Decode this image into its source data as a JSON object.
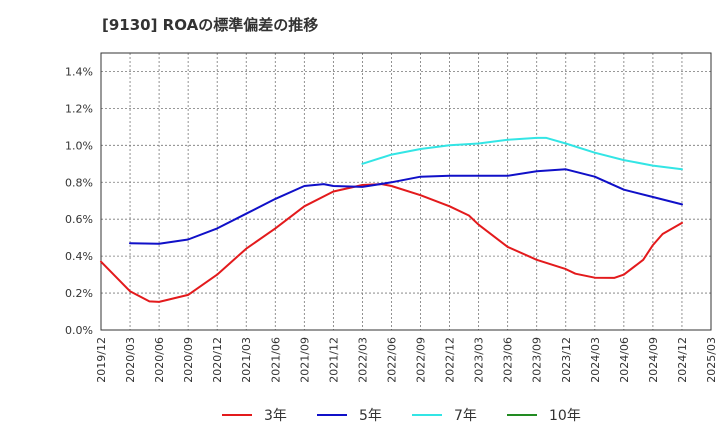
{
  "chart_data": {
    "type": "line",
    "title": "[9130]  ROAの標準偏差の推移",
    "xlabel": "",
    "ylabel": "",
    "x_ticks": [
      "2019/12",
      "2020/03",
      "2020/06",
      "2020/09",
      "2020/12",
      "2021/03",
      "2021/06",
      "2021/09",
      "2021/12",
      "2022/03",
      "2022/06",
      "2022/09",
      "2022/12",
      "2023/03",
      "2023/06",
      "2023/09",
      "2023/12",
      "2024/03",
      "2024/06",
      "2024/09",
      "2024/12",
      "2025/03"
    ],
    "y_ticks": [
      "0.0%",
      "0.2%",
      "0.4%",
      "0.6%",
      "0.8%",
      "1.0%",
      "1.2%",
      "1.4%"
    ],
    "ylim": [
      0,
      1.5
    ],
    "grid": true,
    "legend_position": "bottom",
    "series": [
      {
        "name": "3年",
        "color": "#e31a1c",
        "points": [
          [
            "2019/12",
            0.37
          ],
          [
            "2020/03",
            0.21
          ],
          [
            "2020/05",
            0.155
          ],
          [
            "2020/06",
            0.152
          ],
          [
            "2020/09",
            0.19
          ],
          [
            "2020/12",
            0.3
          ],
          [
            "2021/03",
            0.44
          ],
          [
            "2021/06",
            0.55
          ],
          [
            "2021/09",
            0.67
          ],
          [
            "2021/12",
            0.75
          ],
          [
            "2022/03",
            0.785
          ],
          [
            "2022/05",
            0.79
          ],
          [
            "2022/06",
            0.78
          ],
          [
            "2022/09",
            0.73
          ],
          [
            "2022/12",
            0.67
          ],
          [
            "2023/02",
            0.62
          ],
          [
            "2023/03",
            0.57
          ],
          [
            "2023/06",
            0.45
          ],
          [
            "2023/09",
            0.38
          ],
          [
            "2023/12",
            0.33
          ],
          [
            "2024/01",
            0.305
          ],
          [
            "2024/03",
            0.283
          ],
          [
            "2024/05",
            0.282
          ],
          [
            "2024/06",
            0.3
          ],
          [
            "2024/08",
            0.38
          ],
          [
            "2024/09",
            0.46
          ],
          [
            "2024/10",
            0.52
          ],
          [
            "2024/12",
            0.58
          ]
        ]
      },
      {
        "name": "5年",
        "color": "#1010c8",
        "points": [
          [
            "2020/03",
            0.47
          ],
          [
            "2020/06",
            0.467
          ],
          [
            "2020/09",
            0.49
          ],
          [
            "2020/12",
            0.55
          ],
          [
            "2021/03",
            0.63
          ],
          [
            "2021/06",
            0.71
          ],
          [
            "2021/09",
            0.78
          ],
          [
            "2021/11",
            0.79
          ],
          [
            "2021/12",
            0.78
          ],
          [
            "2022/03",
            0.775
          ],
          [
            "2022/06",
            0.8
          ],
          [
            "2022/09",
            0.83
          ],
          [
            "2022/12",
            0.835
          ],
          [
            "2023/03",
            0.835
          ],
          [
            "2023/06",
            0.835
          ],
          [
            "2023/09",
            0.86
          ],
          [
            "2023/12",
            0.87
          ],
          [
            "2024/03",
            0.83
          ],
          [
            "2024/06",
            0.76
          ],
          [
            "2024/09",
            0.72
          ],
          [
            "2024/12",
            0.68
          ]
        ]
      },
      {
        "name": "7年",
        "color": "#33e5e5",
        "points": [
          [
            "2022/03",
            0.9
          ],
          [
            "2022/06",
            0.95
          ],
          [
            "2022/09",
            0.98
          ],
          [
            "2022/12",
            1.0
          ],
          [
            "2023/03",
            1.01
          ],
          [
            "2023/06",
            1.03
          ],
          [
            "2023/09",
            1.04
          ],
          [
            "2023/10",
            1.04
          ],
          [
            "2023/12",
            1.01
          ],
          [
            "2024/03",
            0.96
          ],
          [
            "2024/06",
            0.92
          ],
          [
            "2024/09",
            0.89
          ],
          [
            "2024/12",
            0.87
          ]
        ]
      },
      {
        "name": "10年",
        "color": "#228b22",
        "points": []
      }
    ]
  }
}
